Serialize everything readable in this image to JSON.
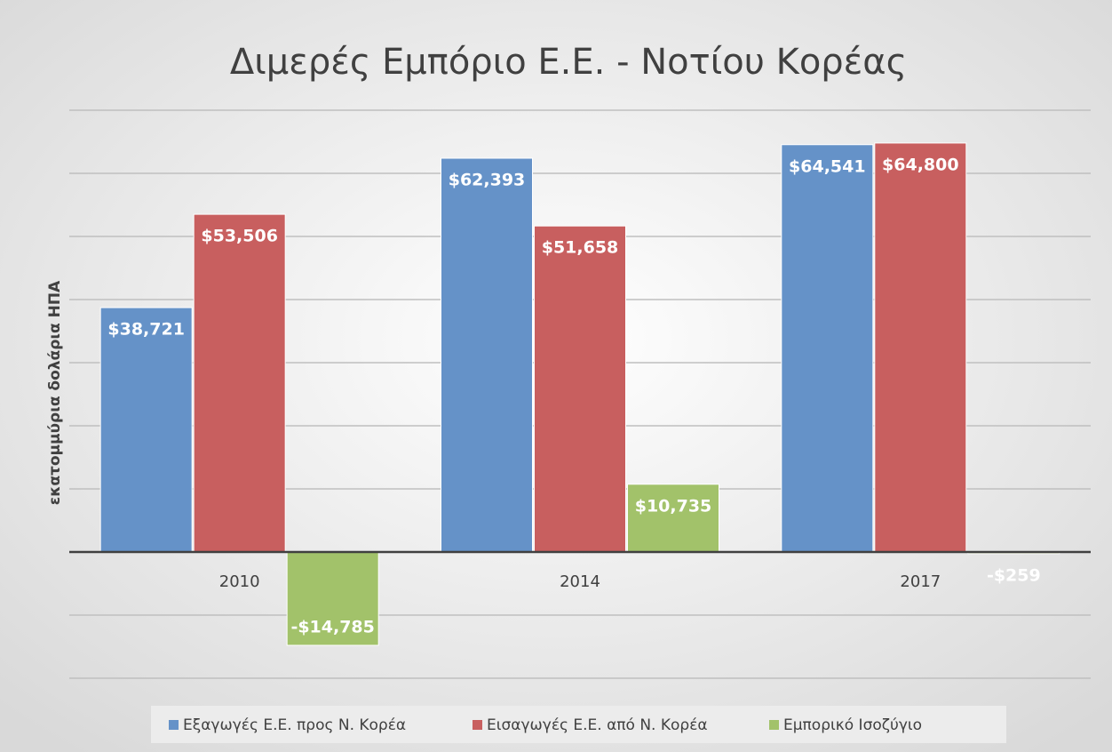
{
  "chart_data": {
    "type": "bar",
    "title": "Διμερές Εμπόριο Ε.Ε. - Νοτίου Κορέας",
    "y_label": "εκατομμύρια δολάρια ΗΠΑ",
    "categories": [
      "2010",
      "2014",
      "2017"
    ],
    "series": [
      {
        "name": "Εξαγωγές Ε.Ε. προς Ν. Κορέα",
        "color": "#6592c8",
        "values": [
          38721,
          62393,
          64541
        ],
        "value_labels": [
          "$38,721",
          "$62,393",
          "$64,541"
        ]
      },
      {
        "name": "Εισαγωγές Ε.Ε. από Ν. Κορέα",
        "color": "#c85f5f",
        "values": [
          53506,
          51658,
          64800
        ],
        "value_labels": [
          "$53,506",
          "$51,658",
          "$64,800"
        ]
      },
      {
        "name": "Εμπορικό Ισοζύγιο",
        "color": "#a2c26a",
        "values": [
          -14785,
          10735,
          -259
        ],
        "value_labels": [
          "-$14,785",
          "$10,735",
          "-$259"
        ]
      }
    ],
    "ylim": [
      -20000,
      70000
    ],
    "yticks": [
      -20000,
      -10000,
      0,
      10000,
      20000,
      30000,
      40000,
      50000,
      60000,
      70000
    ],
    "grid": true,
    "legend": "bottom"
  }
}
